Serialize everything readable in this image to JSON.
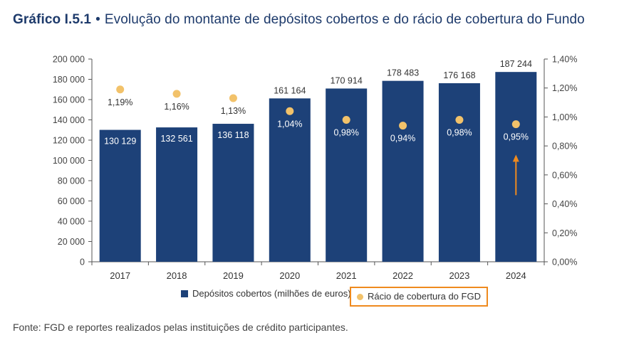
{
  "header": {
    "label": "Gráfico I.5.1",
    "separator": "•",
    "title": "Evolução do montante de depósitos cobertos e do rácio de cobertura do Fundo"
  },
  "chart_data": {
    "type": "bar",
    "categories": [
      "2017",
      "2018",
      "2019",
      "2020",
      "2021",
      "2022",
      "2023",
      "2024"
    ],
    "series": [
      {
        "name": "Depósitos cobertos (milhões de euros)",
        "type": "bar",
        "axis": "left",
        "values": [
          130129,
          132561,
          136118,
          161164,
          170914,
          178483,
          176168,
          187244
        ],
        "labels": [
          "130 129",
          "132 561",
          "136 118",
          "161 164",
          "170 914",
          "178 483",
          "176 168",
          "187 244"
        ],
        "color": "#1d4178"
      },
      {
        "name": "Rácio de cobertura do FGD",
        "type": "scatter",
        "axis": "right",
        "values": [
          1.19,
          1.16,
          1.13,
          1.04,
          0.98,
          0.94,
          0.98,
          0.95
        ],
        "labels": [
          "1,19%",
          "1,16%",
          "1,13%",
          "1,04%",
          "0,98%",
          "0,94%",
          "0,98%",
          "0,95%"
        ],
        "color": "#f2c26a"
      }
    ],
    "y_left": {
      "range": [
        0,
        200000
      ],
      "ticks": [
        "0",
        "20 000",
        "40 000",
        "60 000",
        "80 000",
        "100 000",
        "120 000",
        "140 000",
        "160 000",
        "180 000",
        "200 000"
      ]
    },
    "y_right": {
      "range": [
        0,
        1.4
      ],
      "ticks": [
        "0,00%",
        "0,20%",
        "0,40%",
        "0,60%",
        "0,80%",
        "1,00%",
        "1,20%",
        "1,40%"
      ]
    },
    "grid": false,
    "annotations": [
      {
        "type": "arrow",
        "category": "2024",
        "from_value": 0.46,
        "to_value": 0.73,
        "color": "#ef8a1e"
      }
    ],
    "legend_position": "bottom"
  },
  "legend": {
    "deposits": "Depósitos cobertos (milhões de euros)",
    "ratio": "Rácio de cobertura do FGD"
  },
  "source": "Fonte: FGD e reportes realizados pelas instituições de crédito participantes."
}
